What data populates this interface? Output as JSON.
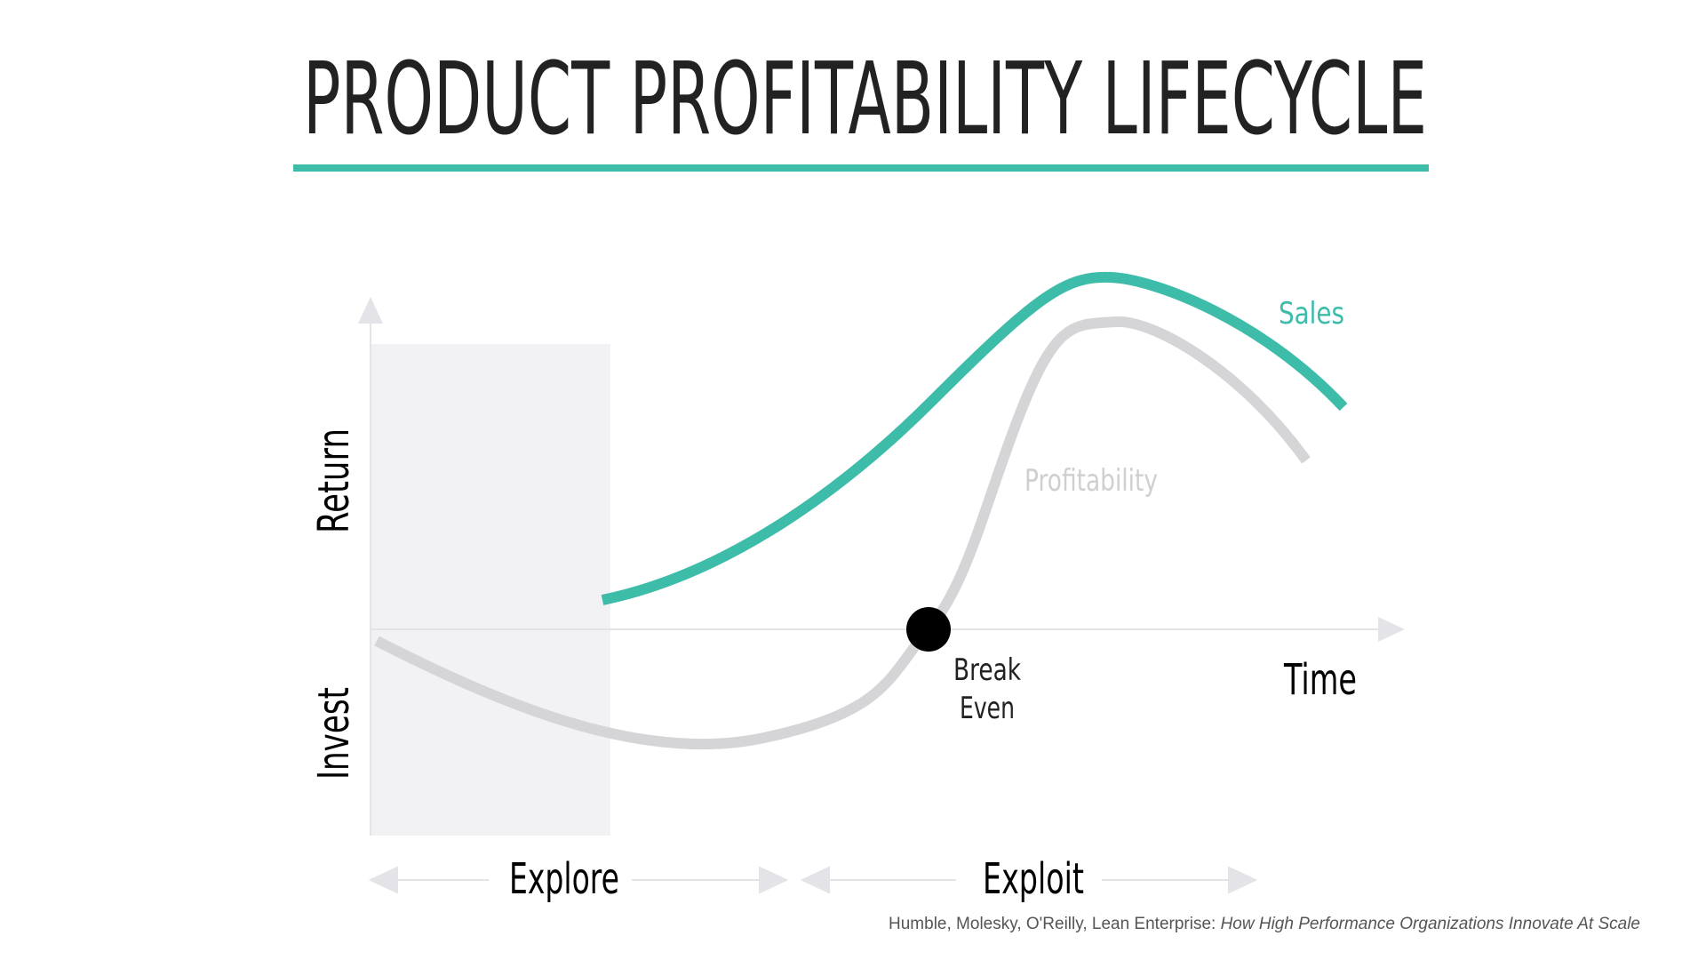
{
  "header": {
    "title": "PRODUCT PROFITABILITY LIFECYCLE"
  },
  "axes": {
    "y_upper": "Return",
    "y_lower": "Invest",
    "x": "Time"
  },
  "curves": {
    "sales": "Sales",
    "profitability": "Profitability"
  },
  "break_even": {
    "lines": [
      "Break",
      "Even"
    ]
  },
  "phases": [
    "Explore",
    "Exploit"
  ],
  "citation": {
    "text": "Humble, Molesky, O'Reilly, Lean Enterprise: ",
    "italic": "How High Performance Organizations Innovate At Scale"
  }
}
